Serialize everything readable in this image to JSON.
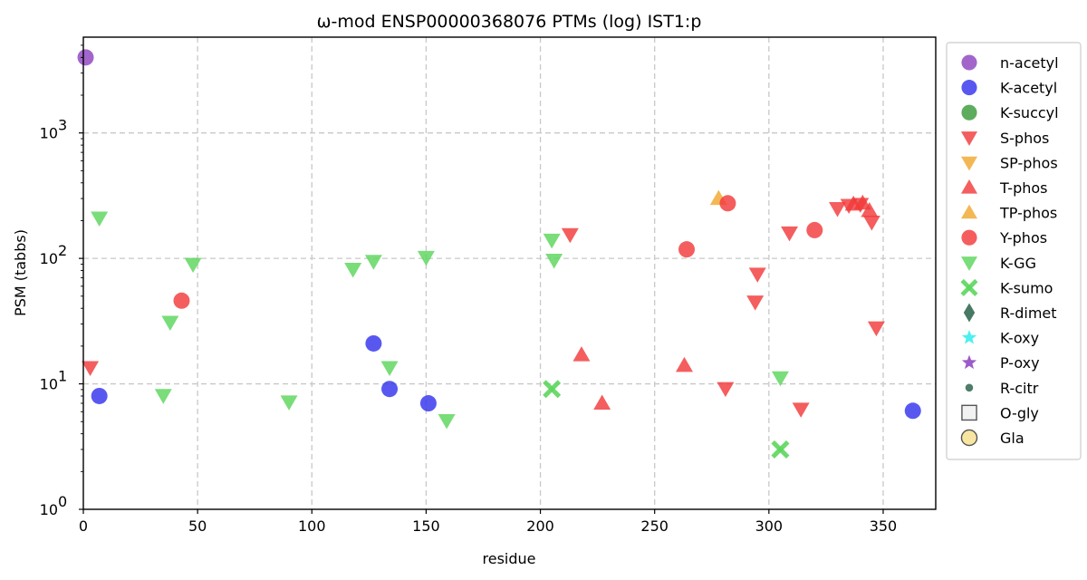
{
  "chart_data": {
    "type": "scatter",
    "title": "ω-mod ENSP00000368076 PTMs (log) IST1:p",
    "xlabel": "residue",
    "ylabel": "PSM (tabbs)",
    "x_range": [
      0,
      373
    ],
    "y_range": [
      1,
      5800
    ],
    "y_scale": "log",
    "grid": true,
    "legend_position": "outside-right",
    "x_ticks": [
      {
        "value": 0,
        "label": "0"
      },
      {
        "value": 50,
        "label": "50"
      },
      {
        "value": 100,
        "label": "100"
      },
      {
        "value": 150,
        "label": "150"
      },
      {
        "value": 200,
        "label": "200"
      },
      {
        "value": 250,
        "label": "250"
      },
      {
        "value": 300,
        "label": "300"
      },
      {
        "value": 350,
        "label": "350"
      }
    ],
    "y_ticks": [
      {
        "value": 1,
        "base": "10",
        "exp": "0"
      },
      {
        "value": 10,
        "base": "10",
        "exp": "1"
      },
      {
        "value": 100,
        "base": "10",
        "exp": "2"
      },
      {
        "value": 1000,
        "base": "10",
        "exp": "3"
      }
    ],
    "series": [
      {
        "name": "n-acetyl",
        "marker": "circle",
        "color": "#8e44c0",
        "points": [
          [
            1,
            4000
          ]
        ]
      },
      {
        "name": "K-acetyl",
        "marker": "circle",
        "color": "#3333ee",
        "points": [
          [
            7,
            8
          ],
          [
            127,
            21
          ],
          [
            134,
            9.1
          ],
          [
            151,
            7
          ],
          [
            363,
            6.1
          ]
        ]
      },
      {
        "name": "K-succyl",
        "marker": "circle",
        "color": "#3a9a3a",
        "points": []
      },
      {
        "name": "S-phos",
        "marker": "triangle-down",
        "color": "#f23a3a",
        "points": [
          [
            3,
            13.5
          ],
          [
            213,
            155
          ],
          [
            281,
            9.2
          ],
          [
            295,
            75
          ],
          [
            294,
            45
          ],
          [
            309,
            160
          ],
          [
            314,
            6.3
          ],
          [
            330,
            250
          ],
          [
            335,
            265
          ],
          [
            340,
            270
          ],
          [
            345,
            195
          ],
          [
            347,
            28
          ]
        ]
      },
      {
        "name": "SP-phos",
        "marker": "triangle-down",
        "color": "#f0a830",
        "points": []
      },
      {
        "name": "T-phos",
        "marker": "triangle-up",
        "color": "#f23a3a",
        "points": [
          [
            218,
            17
          ],
          [
            227,
            7
          ],
          [
            263,
            14
          ],
          [
            337,
            270
          ],
          [
            341,
            275
          ],
          [
            344,
            240
          ]
        ]
      },
      {
        "name": "TP-phos",
        "marker": "triangle-up",
        "color": "#f0a830",
        "points": [
          [
            278,
            300
          ]
        ]
      },
      {
        "name": "Y-phos",
        "marker": "circle",
        "color": "#f23a3a",
        "points": [
          [
            43,
            46
          ],
          [
            264,
            118
          ],
          [
            282,
            275
          ],
          [
            320,
            168
          ]
        ]
      },
      {
        "name": "K-GG",
        "marker": "triangle-down",
        "color": "#5cd65c",
        "points": [
          [
            7,
            210
          ],
          [
            35,
            8.1
          ],
          [
            38,
            31
          ],
          [
            48,
            90
          ],
          [
            90,
            7.2
          ],
          [
            118,
            82
          ],
          [
            127,
            95
          ],
          [
            134,
            13.5
          ],
          [
            150,
            102
          ],
          [
            159,
            5.1
          ],
          [
            205,
            140
          ],
          [
            206,
            97
          ],
          [
            305,
            11.2
          ]
        ]
      },
      {
        "name": "K-sumo",
        "marker": "x",
        "color": "#5cd65c",
        "points": [
          [
            205,
            9.1
          ],
          [
            305,
            3
          ]
        ]
      },
      {
        "name": "R-dimet",
        "marker": "diamond",
        "color": "#2f6650",
        "points": []
      },
      {
        "name": "K-oxy",
        "marker": "star",
        "color": "#33eeee",
        "points": []
      },
      {
        "name": "P-oxy",
        "marker": "star",
        "color": "#8e44c0",
        "points": []
      },
      {
        "name": "R-citr",
        "marker": "small-circle",
        "color": "#2f6650",
        "points": []
      },
      {
        "name": "O-gly",
        "marker": "square-open",
        "color": "#555555",
        "points": []
      },
      {
        "name": "Gla",
        "marker": "circle-open",
        "color": "#f5d76e",
        "points": []
      }
    ]
  }
}
